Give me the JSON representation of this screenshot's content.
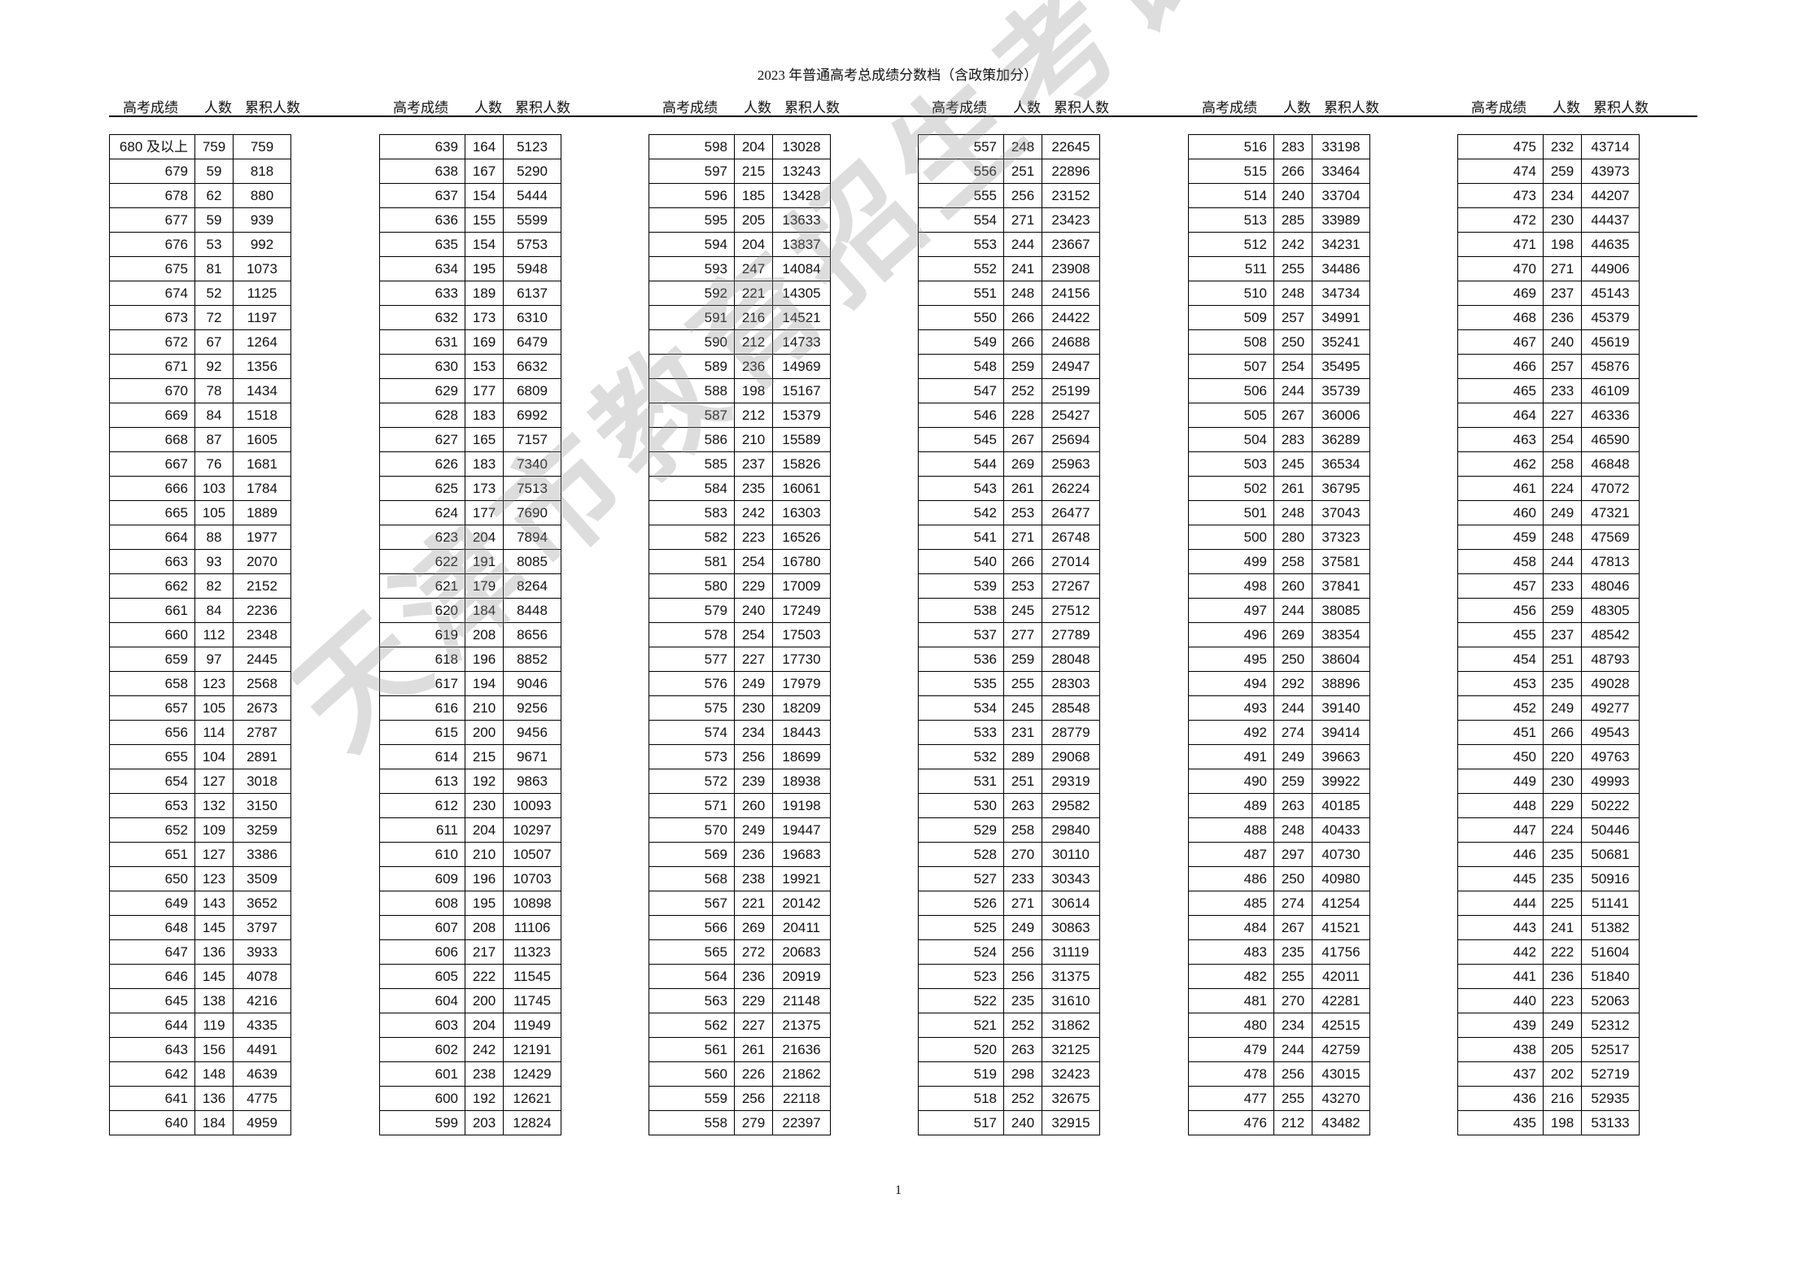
{
  "title": "2023 年普通高考总成绩分数档（含政策加分）",
  "headers": {
    "score": "高考成绩",
    "count": "人数",
    "cumulative": "累积人数"
  },
  "watermark": "天津市教育招生考试院",
  "page_number": "1",
  "tables": [
    {
      "scores": [
        "680 及以上",
        "679",
        "678",
        "677",
        "676",
        "675",
        "674",
        "673",
        "672",
        "671",
        "670",
        "669",
        "668",
        "667",
        "666",
        "665",
        "664",
        "663",
        "662",
        "661",
        "660",
        "659",
        "658",
        "657",
        "656",
        "655",
        "654",
        "653",
        "652",
        "651",
        "650",
        "649",
        "648",
        "647",
        "646",
        "645",
        "644",
        "643",
        "642",
        "641",
        "640"
      ],
      "counts": [
        "759",
        "59",
        "62",
        "59",
        "53",
        "81",
        "52",
        "72",
        "67",
        "92",
        "78",
        "84",
        "87",
        "76",
        "103",
        "105",
        "88",
        "93",
        "82",
        "84",
        "112",
        "97",
        "123",
        "105",
        "114",
        "104",
        "127",
        "132",
        "109",
        "127",
        "123",
        "143",
        "145",
        "136",
        "145",
        "138",
        "119",
        "156",
        "148",
        "136",
        "184"
      ],
      "cumulative": [
        "759",
        "818",
        "880",
        "939",
        "992",
        "1073",
        "1125",
        "1197",
        "1264",
        "1356",
        "1434",
        "1518",
        "1605",
        "1681",
        "1784",
        "1889",
        "1977",
        "2070",
        "2152",
        "2236",
        "2348",
        "2445",
        "2568",
        "2673",
        "2787",
        "2891",
        "3018",
        "3150",
        "3259",
        "3386",
        "3509",
        "3652",
        "3797",
        "3933",
        "4078",
        "4216",
        "4335",
        "4491",
        "4639",
        "4775",
        "4959"
      ]
    },
    {
      "scores": [
        "639",
        "638",
        "637",
        "636",
        "635",
        "634",
        "633",
        "632",
        "631",
        "630",
        "629",
        "628",
        "627",
        "626",
        "625",
        "624",
        "623",
        "622",
        "621",
        "620",
        "619",
        "618",
        "617",
        "616",
        "615",
        "614",
        "613",
        "612",
        "611",
        "610",
        "609",
        "608",
        "607",
        "606",
        "605",
        "604",
        "603",
        "602",
        "601",
        "600",
        "599"
      ],
      "counts": [
        "164",
        "167",
        "154",
        "155",
        "154",
        "195",
        "189",
        "173",
        "169",
        "153",
        "177",
        "183",
        "165",
        "183",
        "173",
        "177",
        "204",
        "191",
        "179",
        "184",
        "208",
        "196",
        "194",
        "210",
        "200",
        "215",
        "192",
        "230",
        "204",
        "210",
        "196",
        "195",
        "208",
        "217",
        "222",
        "200",
        "204",
        "242",
        "238",
        "192",
        "203"
      ],
      "cumulative": [
        "5123",
        "5290",
        "5444",
        "5599",
        "5753",
        "5948",
        "6137",
        "6310",
        "6479",
        "6632",
        "6809",
        "6992",
        "7157",
        "7340",
        "7513",
        "7690",
        "7894",
        "8085",
        "8264",
        "8448",
        "8656",
        "8852",
        "9046",
        "9256",
        "9456",
        "9671",
        "9863",
        "10093",
        "10297",
        "10507",
        "10703",
        "10898",
        "11106",
        "11323",
        "11545",
        "11745",
        "11949",
        "12191",
        "12429",
        "12621",
        "12824"
      ]
    },
    {
      "scores": [
        "598",
        "597",
        "596",
        "595",
        "594",
        "593",
        "592",
        "591",
        "590",
        "589",
        "588",
        "587",
        "586",
        "585",
        "584",
        "583",
        "582",
        "581",
        "580",
        "579",
        "578",
        "577",
        "576",
        "575",
        "574",
        "573",
        "572",
        "571",
        "570",
        "569",
        "568",
        "567",
        "566",
        "565",
        "564",
        "563",
        "562",
        "561",
        "560",
        "559",
        "558"
      ],
      "counts": [
        "204",
        "215",
        "185",
        "205",
        "204",
        "247",
        "221",
        "216",
        "212",
        "236",
        "198",
        "212",
        "210",
        "237",
        "235",
        "242",
        "223",
        "254",
        "229",
        "240",
        "254",
        "227",
        "249",
        "230",
        "234",
        "256",
        "239",
        "260",
        "249",
        "236",
        "238",
        "221",
        "269",
        "272",
        "236",
        "229",
        "227",
        "261",
        "226",
        "256",
        "279"
      ],
      "cumulative": [
        "13028",
        "13243",
        "13428",
        "13633",
        "13837",
        "14084",
        "14305",
        "14521",
        "14733",
        "14969",
        "15167",
        "15379",
        "15589",
        "15826",
        "16061",
        "16303",
        "16526",
        "16780",
        "17009",
        "17249",
        "17503",
        "17730",
        "17979",
        "18209",
        "18443",
        "18699",
        "18938",
        "19198",
        "19447",
        "19683",
        "19921",
        "20142",
        "20411",
        "20683",
        "20919",
        "21148",
        "21375",
        "21636",
        "21862",
        "22118",
        "22397"
      ]
    },
    {
      "scores": [
        "557",
        "556",
        "555",
        "554",
        "553",
        "552",
        "551",
        "550",
        "549",
        "548",
        "547",
        "546",
        "545",
        "544",
        "543",
        "542",
        "541",
        "540",
        "539",
        "538",
        "537",
        "536",
        "535",
        "534",
        "533",
        "532",
        "531",
        "530",
        "529",
        "528",
        "527",
        "526",
        "525",
        "524",
        "523",
        "522",
        "521",
        "520",
        "519",
        "518",
        "517"
      ],
      "counts": [
        "248",
        "251",
        "256",
        "271",
        "244",
        "241",
        "248",
        "266",
        "266",
        "259",
        "252",
        "228",
        "267",
        "269",
        "261",
        "253",
        "271",
        "266",
        "253",
        "245",
        "277",
        "259",
        "255",
        "245",
        "231",
        "289",
        "251",
        "263",
        "258",
        "270",
        "233",
        "271",
        "249",
        "256",
        "256",
        "235",
        "252",
        "263",
        "298",
        "252",
        "240"
      ],
      "cumulative": [
        "22645",
        "22896",
        "23152",
        "23423",
        "23667",
        "23908",
        "24156",
        "24422",
        "24688",
        "24947",
        "25199",
        "25427",
        "25694",
        "25963",
        "26224",
        "26477",
        "26748",
        "27014",
        "27267",
        "27512",
        "27789",
        "28048",
        "28303",
        "28548",
        "28779",
        "29068",
        "29319",
        "29582",
        "29840",
        "30110",
        "30343",
        "30614",
        "30863",
        "31119",
        "31375",
        "31610",
        "31862",
        "32125",
        "32423",
        "32675",
        "32915"
      ]
    },
    {
      "scores": [
        "516",
        "515",
        "514",
        "513",
        "512",
        "511",
        "510",
        "509",
        "508",
        "507",
        "506",
        "505",
        "504",
        "503",
        "502",
        "501",
        "500",
        "499",
        "498",
        "497",
        "496",
        "495",
        "494",
        "493",
        "492",
        "491",
        "490",
        "489",
        "488",
        "487",
        "486",
        "485",
        "484",
        "483",
        "482",
        "481",
        "480",
        "479",
        "478",
        "477",
        "476"
      ],
      "counts": [
        "283",
        "266",
        "240",
        "285",
        "242",
        "255",
        "248",
        "257",
        "250",
        "254",
        "244",
        "267",
        "283",
        "245",
        "261",
        "248",
        "280",
        "258",
        "260",
        "244",
        "269",
        "250",
        "292",
        "244",
        "274",
        "249",
        "259",
        "263",
        "248",
        "297",
        "250",
        "274",
        "267",
        "235",
        "255",
        "270",
        "234",
        "244",
        "256",
        "255",
        "212"
      ],
      "cumulative": [
        "33198",
        "33464",
        "33704",
        "33989",
        "34231",
        "34486",
        "34734",
        "34991",
        "35241",
        "35495",
        "35739",
        "36006",
        "36289",
        "36534",
        "36795",
        "37043",
        "37323",
        "37581",
        "37841",
        "38085",
        "38354",
        "38604",
        "38896",
        "39140",
        "39414",
        "39663",
        "39922",
        "40185",
        "40433",
        "40730",
        "40980",
        "41254",
        "41521",
        "41756",
        "42011",
        "42281",
        "42515",
        "42759",
        "43015",
        "43270",
        "43482"
      ]
    },
    {
      "scores": [
        "475",
        "474",
        "473",
        "472",
        "471",
        "470",
        "469",
        "468",
        "467",
        "466",
        "465",
        "464",
        "463",
        "462",
        "461",
        "460",
        "459",
        "458",
        "457",
        "456",
        "455",
        "454",
        "453",
        "452",
        "451",
        "450",
        "449",
        "448",
        "447",
        "446",
        "445",
        "444",
        "443",
        "442",
        "441",
        "440",
        "439",
        "438",
        "437",
        "436",
        "435"
      ],
      "counts": [
        "232",
        "259",
        "234",
        "230",
        "198",
        "271",
        "237",
        "236",
        "240",
        "257",
        "233",
        "227",
        "254",
        "258",
        "224",
        "249",
        "248",
        "244",
        "233",
        "259",
        "237",
        "251",
        "235",
        "249",
        "266",
        "220",
        "230",
        "229",
        "224",
        "235",
        "235",
        "225",
        "241",
        "222",
        "236",
        "223",
        "249",
        "205",
        "202",
        "216",
        "198"
      ],
      "cumulative": [
        "43714",
        "43973",
        "44207",
        "44437",
        "44635",
        "44906",
        "45143",
        "45379",
        "45619",
        "45876",
        "46109",
        "46336",
        "46590",
        "46848",
        "47072",
        "47321",
        "47569",
        "47813",
        "48046",
        "48305",
        "48542",
        "48793",
        "49028",
        "49277",
        "49543",
        "49763",
        "49993",
        "50222",
        "50446",
        "50681",
        "50916",
        "51141",
        "51382",
        "51604",
        "51840",
        "52063",
        "52312",
        "52517",
        "52719",
        "52935",
        "53133"
      ]
    }
  ]
}
